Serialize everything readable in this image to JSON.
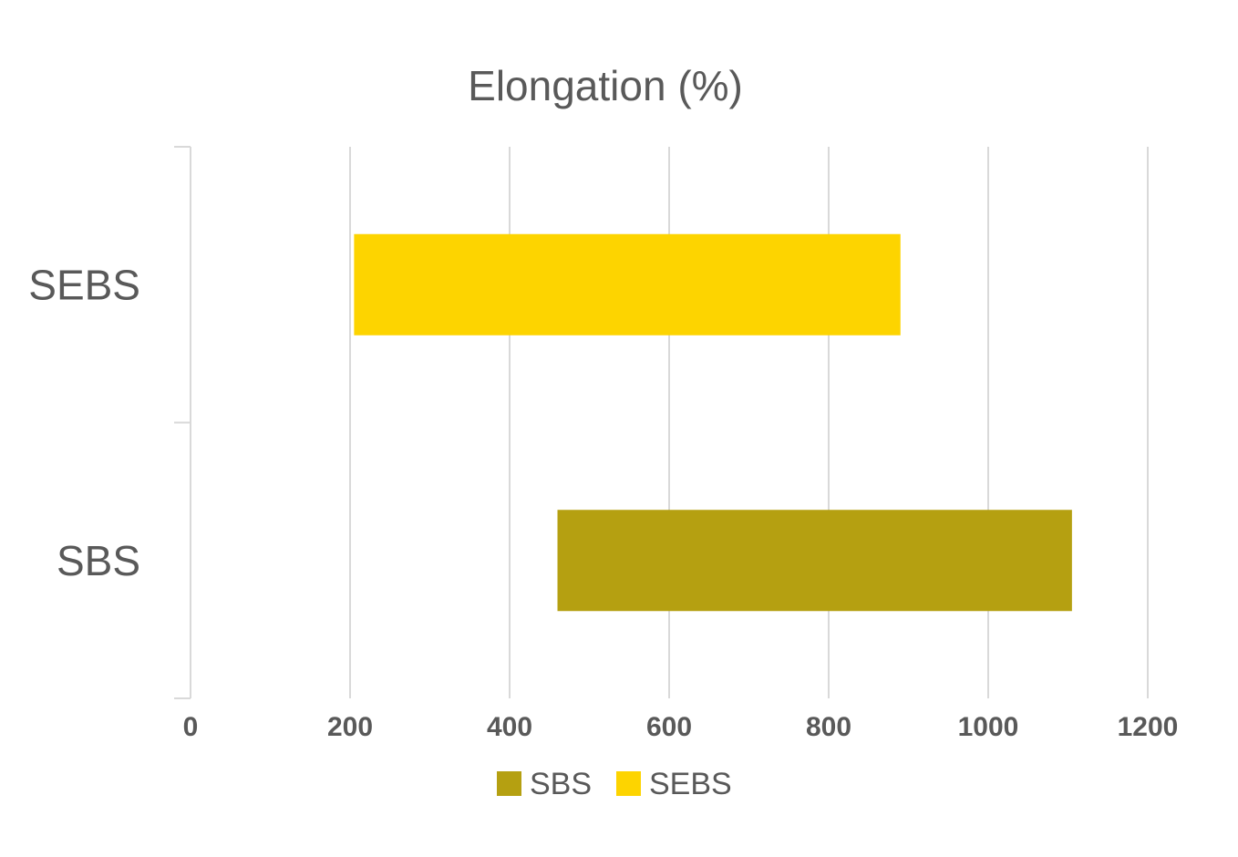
{
  "chart_data": {
    "type": "bar",
    "orientation": "horizontal",
    "title": "Elongation (%)",
    "xlabel": "",
    "ylabel": "",
    "categories": [
      "SBS",
      "SEBS"
    ],
    "series": [
      {
        "name": "SBS",
        "color": "#b5a011",
        "category": "SBS",
        "range": [
          460,
          1105
        ]
      },
      {
        "name": "SEBS",
        "color": "#fdd400",
        "category": "SEBS",
        "range": [
          205,
          890
        ]
      }
    ],
    "xlim": [
      0,
      1200
    ],
    "xticks": [
      "0",
      "200",
      "400",
      "600",
      "800",
      "1000",
      "1200"
    ],
    "grid": true,
    "legend_position": "bottom"
  }
}
